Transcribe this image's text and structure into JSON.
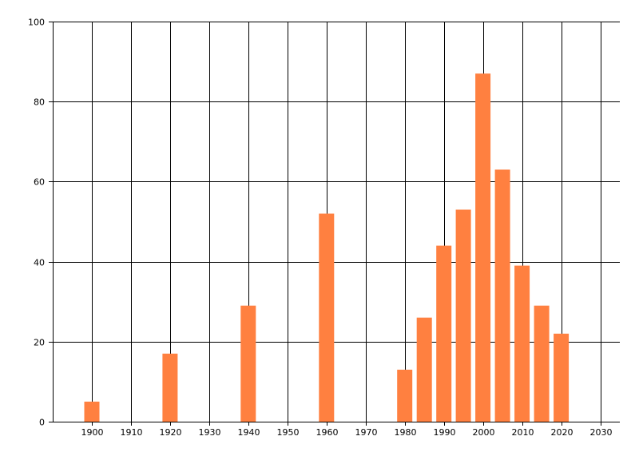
{
  "chart_data": {
    "type": "bar",
    "title": "",
    "xlabel": "",
    "ylabel": "",
    "x": [
      1900,
      1920,
      1940,
      1960,
      1980,
      1985,
      1990,
      1995,
      2000,
      2005,
      2010,
      2015,
      2020
    ],
    "values": [
      5,
      17,
      29,
      52,
      13,
      26,
      44,
      53,
      87,
      63,
      39,
      29,
      22
    ],
    "xlim": [
      1890,
      2035
    ],
    "ylim": [
      0,
      100
    ],
    "x_ticks": [
      1900,
      1910,
      1920,
      1930,
      1940,
      1950,
      1960,
      1970,
      1980,
      1990,
      2000,
      2010,
      2020,
      2030
    ],
    "y_ticks": [
      0,
      20,
      40,
      60,
      80,
      100
    ],
    "bar_color": "#ff8040",
    "grid": true,
    "legend": "none"
  }
}
